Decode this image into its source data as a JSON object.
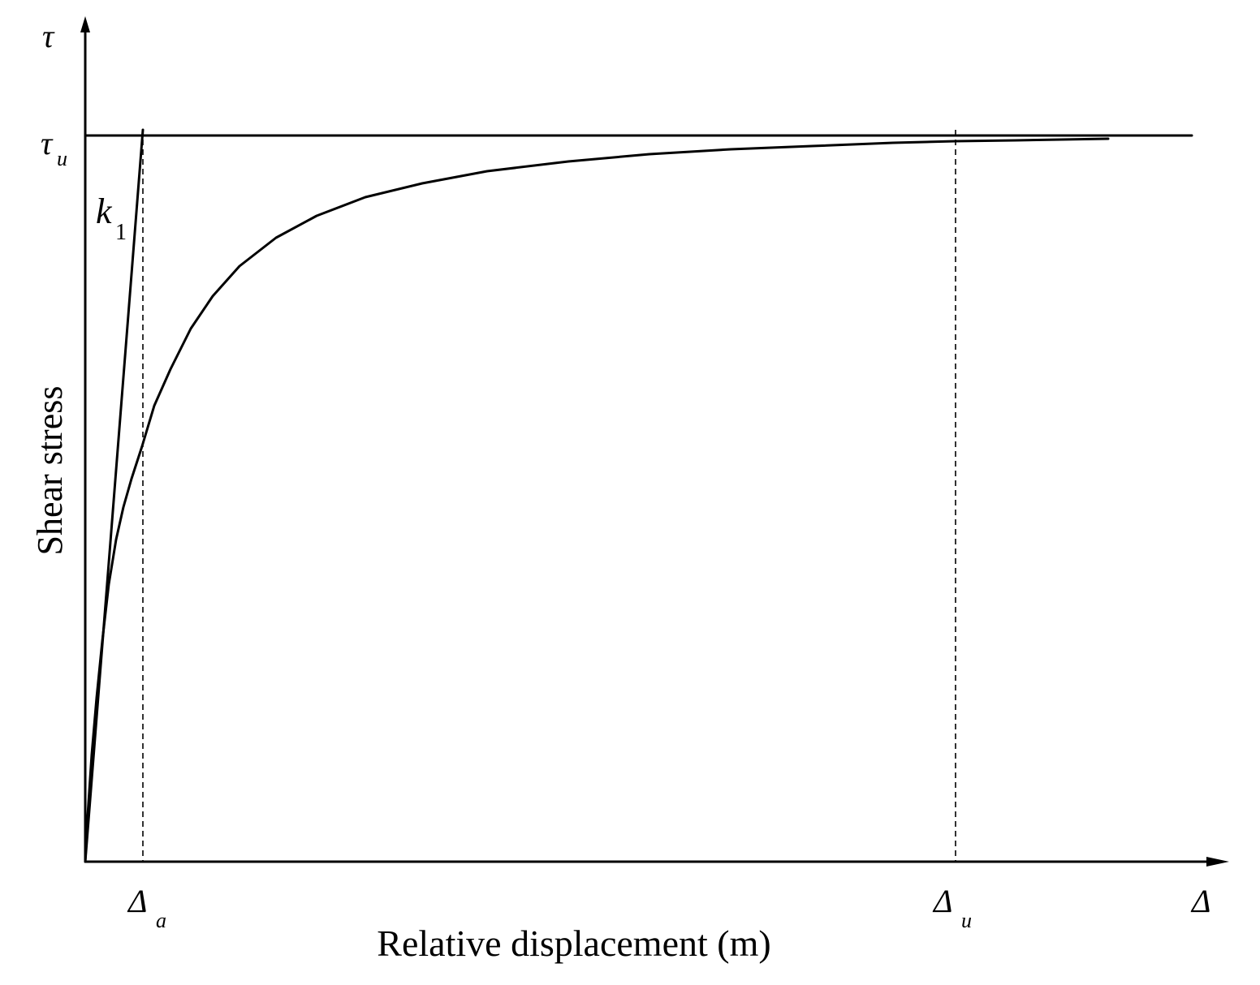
{
  "chart_data": {
    "type": "line",
    "title": "",
    "xlabel": "Relative displacement (m)",
    "ylabel": "Shear stress",
    "x_axis_symbol": "Δ",
    "y_axis_symbol": "τ",
    "x_ticks": [
      {
        "base": "Δ",
        "sub": "a"
      },
      {
        "base": "Δ",
        "sub": "u"
      }
    ],
    "y_ticks": [
      {
        "base": "τ",
        "sub": "u"
      }
    ],
    "annotations": [
      {
        "base": "k",
        "sub": "1"
      }
    ],
    "grid": false,
    "legend": "none"
  }
}
